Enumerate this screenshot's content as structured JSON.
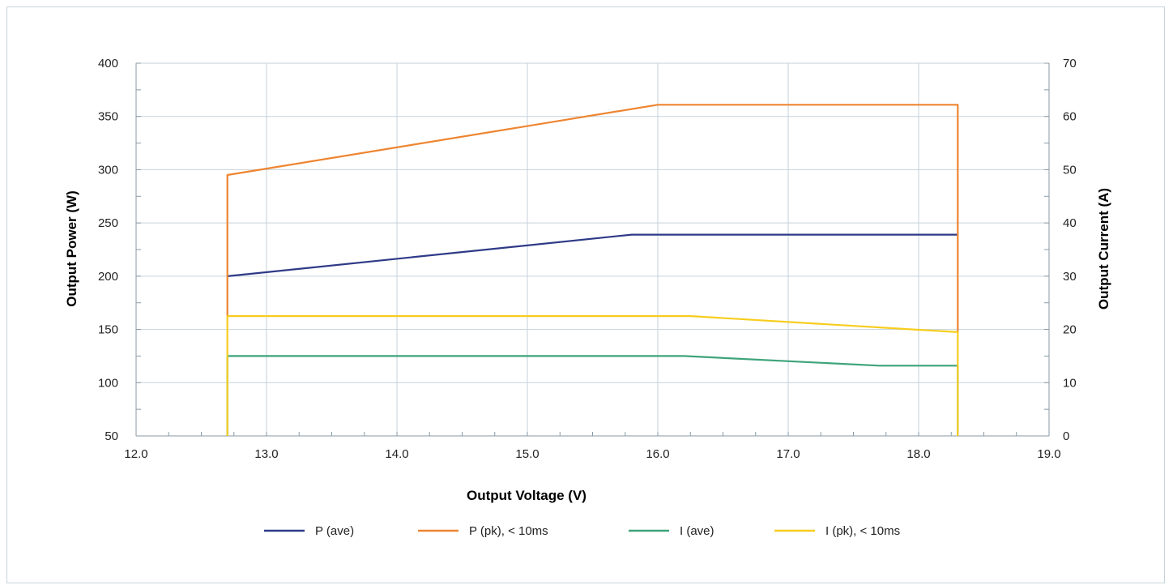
{
  "chart_data": {
    "type": "line",
    "xlabel": "Output Voltage (V)",
    "ylabel": "Output Power (W)",
    "y2label": "Output Current (A)",
    "xlim": [
      12.0,
      19.0
    ],
    "ylim": [
      50,
      400
    ],
    "y2lim": [
      0,
      70
    ],
    "xticks": [
      "12.0",
      "13.0",
      "14.0",
      "15.0",
      "16.0",
      "17.0",
      "18.0",
      "19.0"
    ],
    "yticks": [
      "50",
      "100",
      "150",
      "200",
      "250",
      "300",
      "350",
      "400"
    ],
    "y2ticks": [
      "0",
      "10",
      "20",
      "30",
      "40",
      "50",
      "60",
      "70"
    ],
    "grid": true,
    "legend_position": "bottom",
    "series": [
      {
        "name": "P (ave)",
        "axis": "left",
        "color": "#2e3a87",
        "x": [
          12.7,
          15.8,
          18.3
        ],
        "y": [
          200,
          239,
          239
        ]
      },
      {
        "name": "P (pk), < 10ms",
        "axis": "left",
        "color": "#ee8530",
        "x": [
          12.7,
          12.7,
          12.7,
          16.0,
          18.3,
          18.3
        ],
        "y": [
          162,
          295,
          295,
          361,
          361,
          147
        ]
      },
      {
        "name": "I (ave)",
        "axis": "right",
        "color": "#3ea47a",
        "x": [
          12.7,
          12.7,
          16.2,
          17.7,
          18.3,
          18.3
        ],
        "y": [
          0,
          15,
          15,
          13.2,
          13.2,
          0
        ]
      },
      {
        "name": "I (pk), < 10ms",
        "axis": "right",
        "color": "#f7cd1e",
        "x": [
          12.7,
          12.7,
          16.25,
          18.3,
          18.3
        ],
        "y": [
          0,
          22.5,
          22.5,
          19.5,
          0
        ]
      }
    ]
  }
}
